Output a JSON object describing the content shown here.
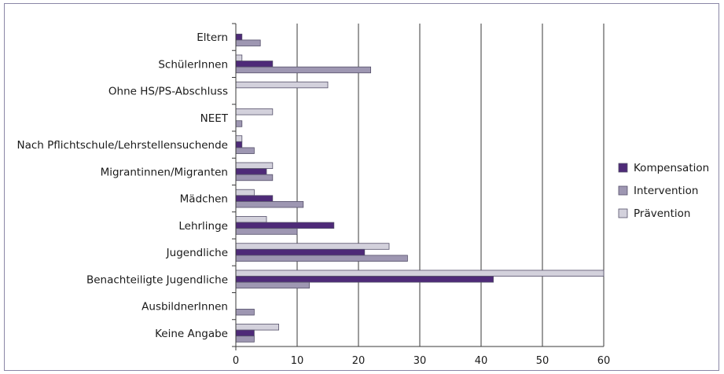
{
  "chart_data": {
    "type": "bar",
    "orientation": "horizontal",
    "categories": [
      "Eltern",
      "SchülerInnen",
      "Ohne HS/PS-Abschluss",
      "NEET",
      "Nach Pflichtschule/Lehrstellensuchende",
      "Migrantinnen/Migranten",
      "Mädchen",
      "Lehrlinge",
      "Jugendliche",
      "Benachteiligte Jugendliche",
      "AusbildnerInnen",
      "Keine Angabe"
    ],
    "series": [
      {
        "name": "Kompensation",
        "color": "#4e2a78",
        "values": [
          1,
          6,
          0,
          0,
          1,
          5,
          6,
          16,
          21,
          42,
          0,
          3
        ]
      },
      {
        "name": "Intervention",
        "color": "#9e97b2",
        "values": [
          4,
          22,
          0,
          1,
          3,
          6,
          11,
          10,
          28,
          12,
          3,
          3
        ]
      },
      {
        "name": "Prävention",
        "color": "#d3d1dc",
        "values": [
          0,
          1,
          15,
          6,
          1,
          6,
          3,
          5,
          25,
          60,
          0,
          7
        ]
      }
    ],
    "xlim": [
      0,
      60
    ],
    "xticks": [
      0,
      10,
      20,
      30,
      40,
      50,
      60
    ],
    "grid": "vertical",
    "legend_position": "right",
    "title": "",
    "xlabel": "",
    "ylabel": ""
  }
}
